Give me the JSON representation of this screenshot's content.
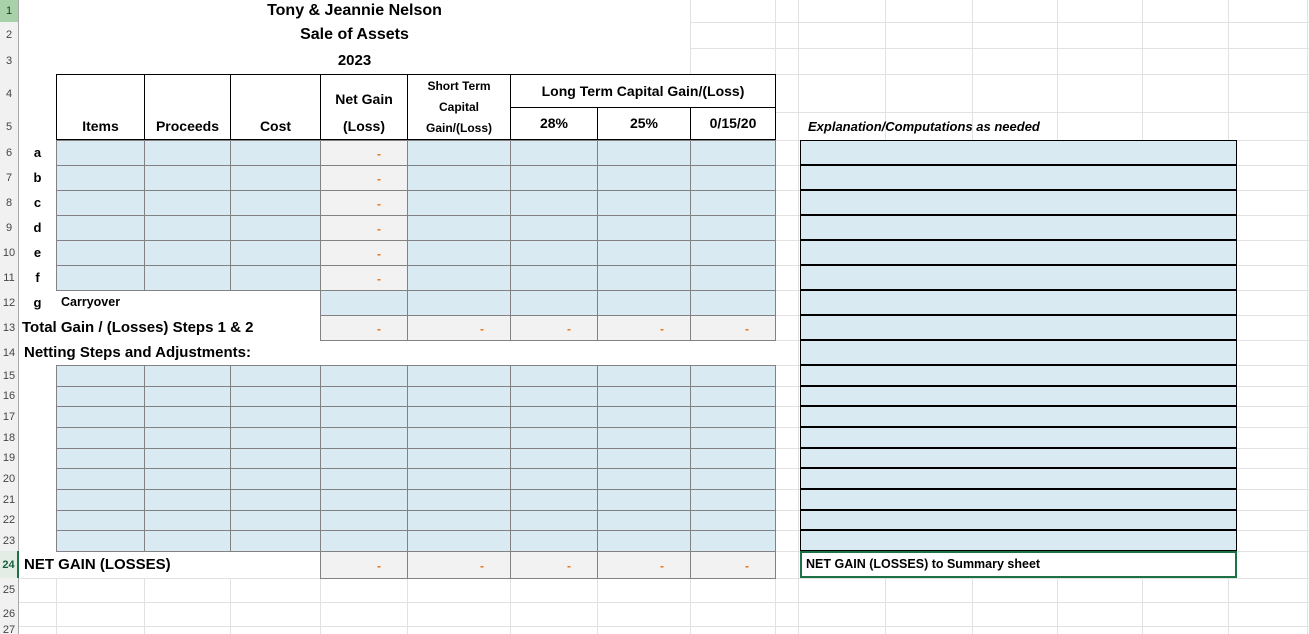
{
  "title_block": {
    "name": "Tony & Jeannie Nelson",
    "sheet_title": "Sale of Assets",
    "year": "2023"
  },
  "columns": {
    "items": "Items",
    "proceeds": "Proceeds",
    "cost": "Cost",
    "net_gain_line1": "Net Gain",
    "net_gain_line2": "(Loss)",
    "short_term_line1": "Short Term",
    "short_term_line2": "Capital",
    "short_term_line3": "Gain/(Loss)",
    "long_term": "Long Term Capital Gain/(Loss)",
    "rate_28": "28%",
    "rate_25": "25%",
    "rate_0_15_20": "0/15/20",
    "explanation": "Explanation/Computations as needed"
  },
  "row_letters": [
    "a",
    "b",
    "c",
    "d",
    "e",
    "f",
    "g"
  ],
  "labels": {
    "carryover": "Carryover",
    "total": "Total Gain / (Losses) Steps 1 & 2",
    "netting": "Netting Steps and Adjustments:",
    "net_gain": "NET GAIN (LOSSES)",
    "summary_note": "NET GAIN (LOSSES) to Summary sheet"
  },
  "placeholder_dash": "-",
  "row_numbers": [
    "1",
    "2",
    "3",
    "4",
    "5",
    "6",
    "7",
    "8",
    "9",
    "10",
    "11",
    "12",
    "13",
    "14",
    "15",
    "16",
    "17",
    "18",
    "19",
    "20",
    "21",
    "22",
    "23",
    "24",
    "25",
    "26",
    "27"
  ],
  "colors": {
    "accent_orange": "#E8740E",
    "fill_blue": "#D9EAF2",
    "fill_gray": "#F2F2F2",
    "selection_green": "#1E7145",
    "selected_row_header_green": "#A8D1AA"
  }
}
